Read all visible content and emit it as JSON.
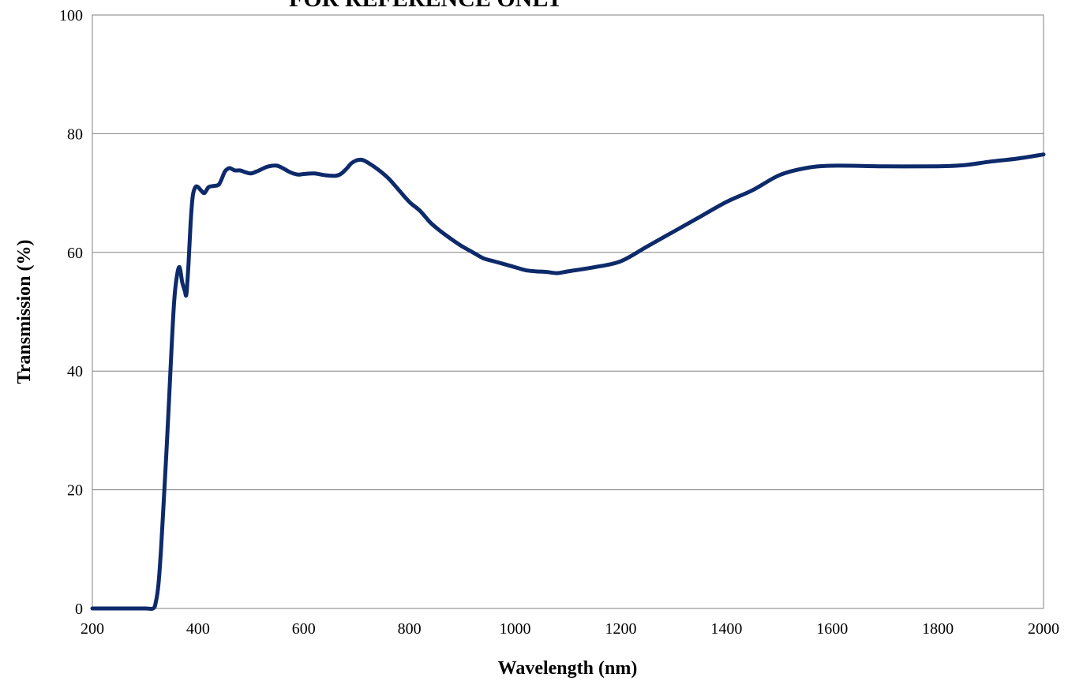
{
  "chart_data": {
    "type": "line",
    "title": "FOR REFERENCE ONLY",
    "xlabel": "Wavelength (nm)",
    "ylabel": "Transmission (%)",
    "xlim": [
      200,
      2000
    ],
    "ylim": [
      0,
      100
    ],
    "xticks": [
      200,
      400,
      600,
      800,
      1000,
      1200,
      1400,
      1600,
      1800,
      2000
    ],
    "yticks": [
      0,
      20,
      40,
      60,
      80,
      100
    ],
    "grid": "horizontal",
    "line_color": "#0d2a6b",
    "series": [
      {
        "x": [
          200,
          250,
          300,
          315,
          320,
          325,
          330,
          335,
          340,
          345,
          350,
          355,
          360,
          365,
          370,
          375,
          378,
          382,
          386,
          390,
          395,
          400,
          405,
          412,
          420,
          430,
          440,
          450,
          455,
          460,
          465,
          470,
          480,
          490,
          500,
          510,
          520,
          530,
          540,
          550,
          560,
          570,
          580,
          590,
          600,
          620,
          640,
          660,
          670,
          680,
          690,
          700,
          710,
          720,
          740,
          760,
          780,
          800,
          820,
          840,
          860,
          880,
          900,
          920,
          940,
          960,
          980,
          1000,
          1020,
          1040,
          1060,
          1080,
          1100,
          1150,
          1200,
          1250,
          1300,
          1350,
          1400,
          1450,
          1500,
          1550,
          1600,
          1700,
          1800,
          1850,
          1900,
          1950,
          2000
        ],
        "y": [
          0,
          0,
          0,
          0,
          1,
          4,
          10,
          18,
          26,
          35,
          44,
          52,
          56,
          57.5,
          55,
          53.5,
          53,
          58,
          65,
          69.5,
          71,
          71,
          70.5,
          70,
          71,
          71.2,
          71.5,
          73.5,
          74,
          74.2,
          74,
          73.8,
          73.8,
          73.5,
          73.3,
          73.6,
          74,
          74.4,
          74.6,
          74.6,
          74.2,
          73.7,
          73.3,
          73.1,
          73.2,
          73.3,
          73,
          72.9,
          73.2,
          74,
          75,
          75.5,
          75.6,
          75.2,
          74,
          72.5,
          70.5,
          68.5,
          67,
          65,
          63.5,
          62.2,
          61,
          60,
          59,
          58.5,
          58,
          57.5,
          57,
          56.8,
          56.7,
          56.5,
          56.8,
          57.5,
          58.5,
          61,
          63.5,
          66,
          68.5,
          70.5,
          73,
          74.2,
          74.6,
          74.5,
          74.5,
          74.7,
          75.3,
          75.8,
          76.5
        ]
      }
    ]
  }
}
